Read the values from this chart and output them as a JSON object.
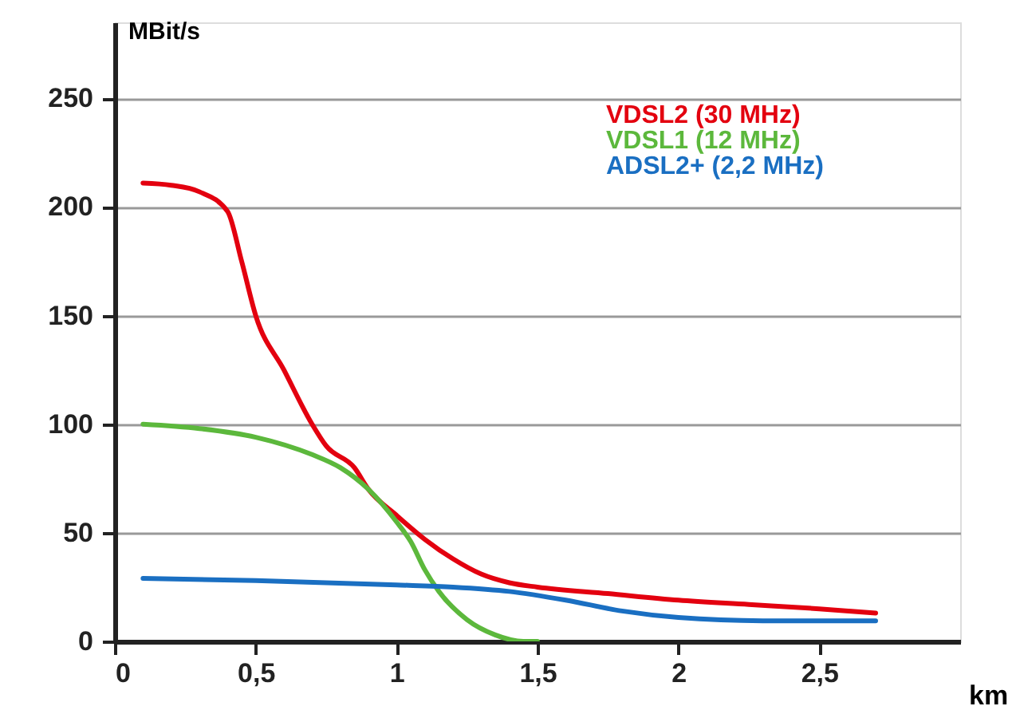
{
  "chart_data": {
    "type": "line",
    "xlabel": "km",
    "ylabel": "MBit/s",
    "xlim": [
      0,
      3.0
    ],
    "ylim": [
      0,
      285
    ],
    "xticks": [
      0,
      {
        "value": 0.5,
        "label": "0,5"
      },
      1,
      {
        "value": 1.5,
        "label": "1,5"
      },
      2,
      {
        "value": 2.5,
        "label": "2,5"
      }
    ],
    "yticks": [
      0,
      50,
      100,
      150,
      200,
      250
    ],
    "grid": "y",
    "legend": "top right",
    "marker": "none",
    "line_style": "solid",
    "series": [
      {
        "name": "VDSL2 (30 MHz)",
        "color": "#e3000f",
        "x": [
          0.1,
          0.2,
          0.3,
          0.4,
          0.45,
          0.5,
          0.6,
          0.7,
          0.75,
          0.85,
          0.9,
          1.0,
          1.1,
          1.2,
          1.3,
          1.4,
          1.5,
          1.75,
          2.0,
          2.25,
          2.5,
          2.7
        ],
        "values": [
          211,
          210,
          207,
          198,
          175,
          150,
          125,
          100,
          90,
          80,
          70,
          58,
          47,
          38,
          31,
          27,
          25,
          22,
          19,
          17,
          15,
          13
        ]
      },
      {
        "name": "VDSL1 (12 MHz)",
        "color": "#5cb83c",
        "x": [
          0.1,
          0.3,
          0.5,
          0.7,
          0.8,
          0.9,
          1.0,
          1.05,
          1.1,
          1.15,
          1.25,
          1.35,
          1.45,
          1.5
        ],
        "values": [
          100,
          98,
          94,
          86,
          80,
          70,
          55,
          46,
          33,
          23,
          10,
          3,
          0,
          0
        ]
      },
      {
        "name": "ADSL2+ (2,2 MHz)",
        "color": "#1a6fc2",
        "x": [
          0.1,
          0.5,
          1.0,
          1.2,
          1.4,
          1.6,
          1.8,
          2.0,
          2.3,
          2.7
        ],
        "values": [
          29,
          28,
          26,
          25,
          23,
          19,
          14,
          11,
          9.5,
          9.5
        ]
      }
    ]
  }
}
